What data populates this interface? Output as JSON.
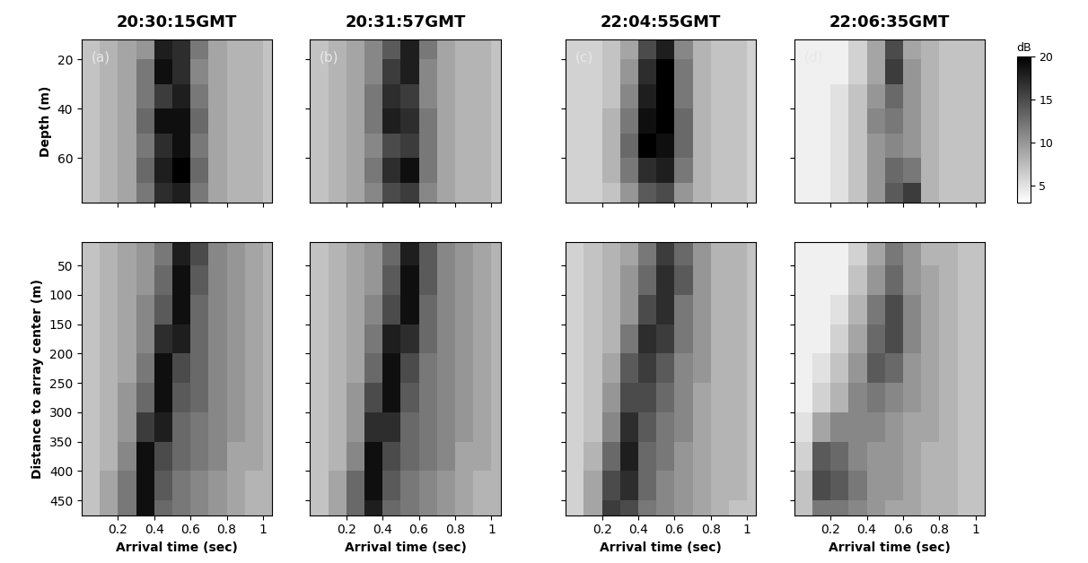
{
  "chart_data": [
    {
      "type": "heatmap",
      "title": "20:30:15GMT",
      "annotation": "(a)",
      "ylabel": "Depth (m)",
      "tick_labels": "y",
      "x": [
        0.05,
        0.15,
        0.25,
        0.35,
        0.45,
        0.55,
        0.65,
        0.75,
        0.85,
        0.95,
        1.05
      ],
      "y": [
        15,
        25,
        35,
        45,
        55,
        65,
        75
      ],
      "xlim": [
        0,
        1.05
      ],
      "ylim": [
        78,
        12
      ],
      "xticks": [
        0.2,
        0.4,
        0.6,
        0.8,
        1
      ],
      "yticks": [
        20,
        40,
        60
      ],
      "cells": [
        [
          7,
          8,
          9,
          10,
          18,
          17,
          12,
          9,
          8,
          8,
          7
        ],
        [
          7,
          8,
          9,
          12,
          19,
          17,
          11,
          9,
          8,
          8,
          7
        ],
        [
          7,
          8,
          9,
          12,
          16,
          18,
          12,
          9,
          8,
          8,
          7
        ],
        [
          7,
          8,
          9,
          13,
          19,
          19,
          13,
          9,
          8,
          8,
          7
        ],
        [
          7,
          8,
          9,
          12,
          17,
          19,
          12,
          9,
          8,
          8,
          7
        ],
        [
          7,
          8,
          9,
          13,
          18,
          20,
          13,
          9,
          8,
          8,
          7
        ],
        [
          7,
          8,
          9,
          12,
          17,
          18,
          12,
          9,
          8,
          8,
          7
        ]
      ]
    },
    {
      "type": "heatmap",
      "title": "20:31:57GMT",
      "annotation": "(b)",
      "tick_labels": false,
      "x": [
        0.05,
        0.15,
        0.25,
        0.35,
        0.45,
        0.55,
        0.65,
        0.75,
        0.85,
        0.95,
        1.05
      ],
      "y": [
        15,
        25,
        35,
        45,
        55,
        65,
        75
      ],
      "xlim": [
        0,
        1.05
      ],
      "ylim": [
        78,
        12
      ],
      "xticks": [
        0.2,
        0.4,
        0.6,
        0.8,
        1
      ],
      "yticks": [
        20,
        40,
        60
      ],
      "cells": [
        [
          7,
          8,
          9,
          11,
          14,
          18,
          12,
          9,
          8,
          8,
          7
        ],
        [
          7,
          8,
          9,
          11,
          16,
          18,
          11,
          9,
          8,
          8,
          7
        ],
        [
          7,
          8,
          9,
          12,
          17,
          16,
          11,
          9,
          8,
          8,
          7
        ],
        [
          7,
          8,
          9,
          12,
          18,
          17,
          12,
          9,
          8,
          8,
          7
        ],
        [
          7,
          8,
          9,
          11,
          15,
          16,
          12,
          9,
          8,
          8,
          7
        ],
        [
          7,
          8,
          9,
          12,
          17,
          19,
          12,
          9,
          8,
          8,
          7
        ],
        [
          7,
          8,
          9,
          11,
          15,
          16,
          11,
          9,
          8,
          8,
          7
        ]
      ]
    },
    {
      "type": "heatmap",
      "title": "22:04:55GMT",
      "annotation": "(c)",
      "tick_labels": false,
      "x": [
        0.05,
        0.15,
        0.25,
        0.35,
        0.45,
        0.55,
        0.65,
        0.75,
        0.85,
        0.95,
        1.05
      ],
      "y": [
        15,
        25,
        35,
        45,
        55,
        65,
        75
      ],
      "xlim": [
        0,
        1.05
      ],
      "ylim": [
        78,
        12
      ],
      "xticks": [
        0.2,
        0.4,
        0.6,
        0.8,
        1
      ],
      "yticks": [
        20,
        40,
        60
      ],
      "cells": [
        [
          6,
          6,
          7,
          9,
          15,
          18,
          11,
          8,
          7,
          7,
          6
        ],
        [
          6,
          6,
          7,
          10,
          17,
          20,
          12,
          8,
          7,
          7,
          6
        ],
        [
          6,
          6,
          7,
          11,
          18,
          20,
          12,
          8,
          7,
          7,
          6
        ],
        [
          6,
          6,
          8,
          12,
          19,
          20,
          13,
          8,
          7,
          7,
          6
        ],
        [
          6,
          6,
          8,
          13,
          20,
          19,
          13,
          8,
          7,
          7,
          6
        ],
        [
          6,
          6,
          8,
          12,
          17,
          18,
          12,
          8,
          7,
          7,
          6
        ],
        [
          6,
          6,
          7,
          10,
          14,
          15,
          10,
          8,
          7,
          7,
          6
        ]
      ]
    },
    {
      "type": "heatmap",
      "title": "22:06:35GMT",
      "annotation": "(d)",
      "tick_labels": false,
      "x": [
        0.05,
        0.15,
        0.25,
        0.35,
        0.45,
        0.55,
        0.65,
        0.75,
        0.85,
        0.95,
        1.05
      ],
      "y": [
        15,
        25,
        35,
        45,
        55,
        65,
        75
      ],
      "xlim": [
        0,
        1.05
      ],
      "ylim": [
        78,
        12
      ],
      "xticks": [
        0.2,
        0.4,
        0.6,
        0.8,
        1
      ],
      "yticks": [
        20,
        40,
        60
      ],
      "cells": [
        [
          4,
          4,
          4,
          6,
          9,
          15,
          9,
          8,
          7,
          7,
          7
        ],
        [
          4,
          4,
          4,
          6,
          9,
          16,
          10,
          8,
          7,
          7,
          7
        ],
        [
          4,
          4,
          5,
          7,
          10,
          13,
          10,
          8,
          7,
          7,
          7
        ],
        [
          4,
          4,
          5,
          7,
          11,
          12,
          10,
          8,
          7,
          7,
          7
        ],
        [
          4,
          4,
          5,
          7,
          10,
          11,
          10,
          8,
          7,
          7,
          7
        ],
        [
          4,
          4,
          5,
          7,
          10,
          13,
          12,
          8,
          7,
          7,
          7
        ],
        [
          4,
          4,
          5,
          7,
          10,
          14,
          16,
          8,
          7,
          7,
          7
        ]
      ]
    },
    {
      "type": "heatmap",
      "xlabel": "Arrival time (sec)",
      "ylabel": "Distance to array center (m)",
      "tick_labels": true,
      "x": [
        0.05,
        0.15,
        0.25,
        0.35,
        0.45,
        0.55,
        0.65,
        0.75,
        0.85,
        0.95,
        1.05
      ],
      "y": [
        25,
        75,
        125,
        175,
        225,
        275,
        325,
        375,
        425,
        475
      ],
      "xlim": [
        0,
        1.05
      ],
      "ylim": [
        475,
        10
      ],
      "xticks": [
        0.2,
        0.4,
        0.6,
        0.8,
        1
      ],
      "yticks": [
        50,
        100,
        150,
        200,
        250,
        300,
        350,
        400,
        450
      ],
      "cells": [
        [
          7,
          8,
          9,
          10,
          12,
          18,
          15,
          11,
          10,
          9,
          8
        ],
        [
          7,
          8,
          9,
          10,
          13,
          19,
          14,
          11,
          10,
          9,
          8
        ],
        [
          7,
          8,
          9,
          11,
          14,
          19,
          13,
          11,
          10,
          9,
          8
        ],
        [
          7,
          8,
          9,
          11,
          17,
          18,
          13,
          11,
          10,
          9,
          8
        ],
        [
          7,
          8,
          9,
          12,
          19,
          15,
          13,
          11,
          10,
          9,
          8
        ],
        [
          7,
          8,
          10,
          13,
          19,
          14,
          13,
          11,
          10,
          9,
          8
        ],
        [
          7,
          8,
          10,
          16,
          18,
          13,
          12,
          11,
          10,
          9,
          8
        ],
        [
          7,
          8,
          11,
          19,
          15,
          13,
          12,
          11,
          9,
          9,
          8
        ],
        [
          7,
          9,
          12,
          19,
          14,
          12,
          11,
          10,
          9,
          8,
          8
        ],
        [
          7,
          9,
          12,
          19,
          13,
          12,
          11,
          10,
          9,
          8,
          8
        ]
      ]
    },
    {
      "type": "heatmap",
      "xlabel": "Arrival time (sec)",
      "tick_labels": "x",
      "x": [
        0.05,
        0.15,
        0.25,
        0.35,
        0.45,
        0.55,
        0.65,
        0.75,
        0.85,
        0.95,
        1.05
      ],
      "y": [
        25,
        75,
        125,
        175,
        225,
        275,
        325,
        375,
        425,
        475
      ],
      "xlim": [
        0,
        1.05
      ],
      "ylim": [
        475,
        10
      ],
      "xticks": [
        0.2,
        0.4,
        0.6,
        0.8,
        1
      ],
      "yticks": [
        50,
        100,
        150,
        200,
        250,
        300,
        350,
        400,
        450
      ],
      "cells": [
        [
          7,
          8,
          9,
          10,
          13,
          18,
          14,
          11,
          10,
          9,
          8
        ],
        [
          7,
          8,
          9,
          10,
          14,
          19,
          14,
          11,
          10,
          9,
          8
        ],
        [
          7,
          8,
          9,
          11,
          15,
          19,
          13,
          11,
          10,
          9,
          8
        ],
        [
          7,
          8,
          9,
          12,
          18,
          17,
          13,
          11,
          10,
          9,
          8
        ],
        [
          7,
          8,
          9,
          13,
          19,
          15,
          12,
          11,
          10,
          9,
          8
        ],
        [
          7,
          8,
          10,
          15,
          19,
          14,
          12,
          11,
          10,
          9,
          8
        ],
        [
          7,
          8,
          10,
          17,
          17,
          13,
          12,
          11,
          10,
          9,
          8
        ],
        [
          7,
          8,
          11,
          19,
          15,
          13,
          12,
          11,
          9,
          9,
          8
        ],
        [
          7,
          9,
          13,
          19,
          14,
          12,
          11,
          10,
          9,
          8,
          8
        ],
        [
          7,
          9,
          13,
          18,
          13,
          12,
          11,
          10,
          9,
          8,
          8
        ]
      ]
    },
    {
      "type": "heatmap",
      "xlabel": "Arrival time (sec)",
      "tick_labels": "x",
      "x": [
        0.05,
        0.15,
        0.25,
        0.35,
        0.45,
        0.55,
        0.65,
        0.75,
        0.85,
        0.95,
        1.05
      ],
      "y": [
        25,
        75,
        125,
        175,
        225,
        275,
        325,
        375,
        425,
        475
      ],
      "xlim": [
        0,
        1.05
      ],
      "ylim": [
        475,
        10
      ],
      "xticks": [
        0.2,
        0.4,
        0.6,
        0.8,
        1
      ],
      "yticks": [
        50,
        100,
        150,
        200,
        250,
        300,
        350,
        400,
        450
      ],
      "cells": [
        [
          6,
          7,
          8,
          9,
          12,
          16,
          13,
          10,
          8,
          8,
          7
        ],
        [
          6,
          7,
          8,
          10,
          13,
          17,
          14,
          10,
          8,
          8,
          7
        ],
        [
          6,
          7,
          8,
          10,
          15,
          17,
          12,
          10,
          8,
          8,
          7
        ],
        [
          6,
          7,
          8,
          12,
          17,
          16,
          12,
          10,
          8,
          8,
          7
        ],
        [
          6,
          7,
          9,
          14,
          16,
          14,
          11,
          10,
          8,
          8,
          7
        ],
        [
          6,
          7,
          10,
          15,
          15,
          13,
          11,
          9,
          8,
          8,
          7
        ],
        [
          6,
          7,
          11,
          17,
          14,
          12,
          11,
          9,
          8,
          8,
          7
        ],
        [
          6,
          8,
          13,
          18,
          13,
          12,
          10,
          9,
          8,
          8,
          7
        ],
        [
          6,
          9,
          15,
          17,
          13,
          11,
          10,
          9,
          8,
          8,
          7
        ],
        [
          6,
          9,
          16,
          15,
          12,
          11,
          10,
          9,
          8,
          7,
          7
        ]
      ]
    },
    {
      "type": "heatmap",
      "xlabel": "Arrival time (sec)",
      "tick_labels": "x",
      "x": [
        0.05,
        0.15,
        0.25,
        0.35,
        0.45,
        0.55,
        0.65,
        0.75,
        0.85,
        0.95,
        1.05
      ],
      "y": [
        25,
        75,
        125,
        175,
        225,
        275,
        325,
        375,
        425,
        475
      ],
      "xlim": [
        0,
        1.05
      ],
      "ylim": [
        475,
        10
      ],
      "xticks": [
        0.2,
        0.4,
        0.6,
        0.8,
        1
      ],
      "yticks": [
        50,
        100,
        150,
        200,
        250,
        300,
        350,
        400,
        450
      ],
      "cells": [
        [
          4,
          4,
          4,
          6,
          9,
          12,
          10,
          8,
          8,
          7,
          7
        ],
        [
          4,
          4,
          4,
          7,
          10,
          13,
          10,
          9,
          8,
          7,
          7
        ],
        [
          4,
          4,
          5,
          8,
          12,
          15,
          11,
          9,
          8,
          7,
          7
        ],
        [
          4,
          4,
          6,
          9,
          13,
          15,
          11,
          9,
          8,
          7,
          7
        ],
        [
          4,
          5,
          7,
          10,
          14,
          13,
          10,
          9,
          8,
          7,
          7
        ],
        [
          4,
          6,
          8,
          11,
          12,
          11,
          10,
          9,
          8,
          7,
          7
        ],
        [
          5,
          9,
          11,
          11,
          11,
          10,
          9,
          9,
          8,
          7,
          7
        ],
        [
          6,
          14,
          13,
          11,
          10,
          10,
          9,
          8,
          8,
          7,
          7
        ],
        [
          7,
          15,
          14,
          12,
          10,
          10,
          9,
          8,
          8,
          7,
          7
        ],
        [
          7,
          12,
          12,
          11,
          10,
          9,
          9,
          8,
          8,
          7,
          7
        ]
      ]
    }
  ],
  "colorbar": {
    "label": "dB",
    "range": [
      3,
      20
    ],
    "ticks": [
      5,
      10,
      15,
      20
    ]
  }
}
